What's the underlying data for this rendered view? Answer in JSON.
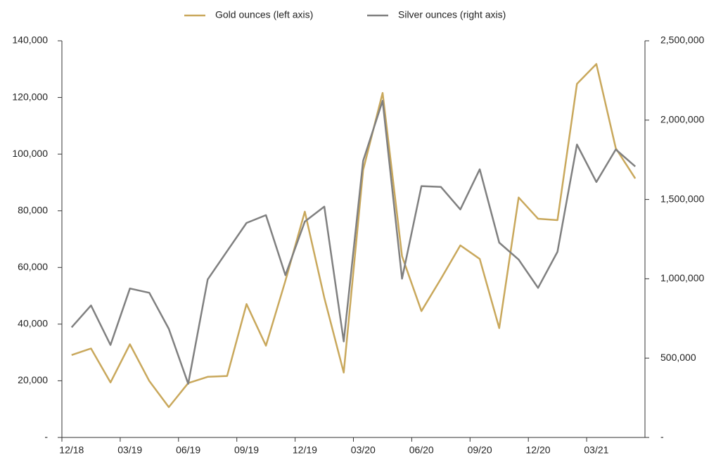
{
  "chart_data": {
    "type": "line",
    "categories": [
      "12/18",
      null,
      null,
      "03/19",
      null,
      null,
      "06/19",
      null,
      null,
      "09/19",
      null,
      null,
      "12/19",
      null,
      null,
      "03/20",
      null,
      null,
      "06/20",
      null,
      null,
      "09/20",
      null,
      null,
      "12/20",
      null,
      null,
      "03/21",
      null,
      null
    ],
    "series": [
      {
        "name": "Gold ounces (left axis)",
        "color": "#c9a85c",
        "axis": "y",
        "values": [
          29100,
          31400,
          19400,
          32900,
          19900,
          10700,
          19200,
          21400,
          21700,
          47100,
          32400,
          55300,
          79700,
          49300,
          22900,
          94400,
          121600,
          64000,
          44600,
          56000,
          67800,
          63000,
          38600,
          84700,
          77200,
          76700,
          124800,
          131800,
          102100,
          91400
        ]
      },
      {
        "name": "Silver ounces (right axis)",
        "color": "#808080",
        "axis": "y2",
        "values": [
          694000,
          832000,
          583000,
          939000,
          912000,
          685000,
          338000,
          996000,
          1174000,
          1352000,
          1401000,
          1023000,
          1361000,
          1455000,
          605000,
          1744000,
          2122000,
          1001000,
          1584000,
          1579000,
          1437000,
          1690000,
          1228000,
          1121000,
          943000,
          1170000,
          1846000,
          1610000,
          1815000,
          1708000
        ]
      }
    ],
    "ylim": [
      0,
      140000
    ],
    "yticks": [
      {
        "value": 0,
        "label": "-"
      },
      {
        "value": 20000,
        "label": "20,000"
      },
      {
        "value": 40000,
        "label": "40,000"
      },
      {
        "value": 60000,
        "label": "60,000"
      },
      {
        "value": 80000,
        "label": "80,000"
      },
      {
        "value": 100000,
        "label": "100,000"
      },
      {
        "value": 120000,
        "label": "120,000"
      },
      {
        "value": 140000,
        "label": "140,000"
      }
    ],
    "y2lim": [
      0,
      2500000
    ],
    "y2ticks": [
      {
        "value": 0,
        "label": "-"
      },
      {
        "value": 500000,
        "label": "500,000"
      },
      {
        "value": 1000000,
        "label": "1,000,000"
      },
      {
        "value": 1500000,
        "label": "1,500,000"
      },
      {
        "value": 2000000,
        "label": "2,000,000"
      },
      {
        "value": 2500000,
        "label": "2,500,000"
      }
    ],
    "legend": "top",
    "grid": false
  }
}
